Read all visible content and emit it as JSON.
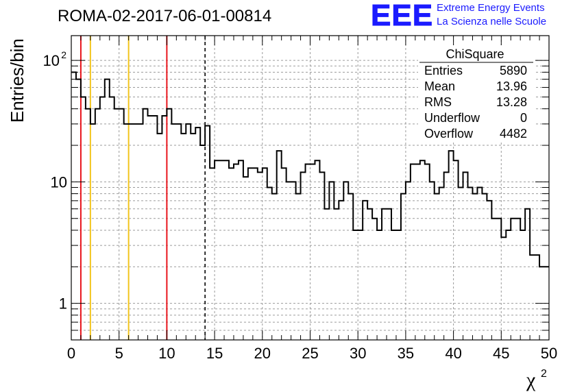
{
  "header": {
    "run_title": "ROMA-02-2017-06-01-00814",
    "logo_text": "EEE",
    "logo_line1": "Extreme Energy Events",
    "logo_line2": "La Scienza nelle Scuole"
  },
  "stats_box": {
    "title": "ChiSquare",
    "rows": [
      {
        "label": "Entries",
        "value": "5890"
      },
      {
        "label": "Mean",
        "value": "13.96"
      },
      {
        "label": "RMS",
        "value": "13.28"
      },
      {
        "label": "Underflow",
        "value": "0"
      },
      {
        "label": "Overflow",
        "value": "4482"
      }
    ]
  },
  "chart_data": {
    "type": "histogram",
    "ylabel": "Entries/bin",
    "xlabel": "χ²",
    "xlim": [
      0,
      50
    ],
    "ylim": [
      0.5,
      160
    ],
    "yscale": "log",
    "grid": true,
    "bin_width": 0.5,
    "x_ticks": [
      "0",
      "5",
      "10",
      "15",
      "20",
      "25",
      "30",
      "35",
      "40",
      "45",
      "50"
    ],
    "y_ticks": [
      {
        "value": 1,
        "label": "1"
      },
      {
        "value": 10,
        "label": "10"
      },
      {
        "value": 100,
        "label": "10",
        "exp": "2"
      }
    ],
    "values": [
      80,
      70,
      50,
      40,
      30,
      40,
      50,
      70,
      50,
      40,
      40,
      30,
      30,
      30,
      30,
      40,
      35,
      35,
      25,
      35,
      40,
      30,
      30,
      25,
      30,
      25,
      28,
      20,
      29,
      13,
      15,
      15,
      15,
      13,
      14,
      15,
      11,
      13,
      13,
      12,
      13,
      9,
      8,
      18,
      13,
      10,
      10,
      8,
      12,
      14,
      14,
      15,
      12,
      6,
      10,
      6,
      7,
      10,
      8,
      4,
      4,
      7,
      6,
      5,
      4,
      6,
      6,
      4,
      4,
      8,
      10,
      14,
      14,
      15,
      14,
      10,
      8,
      9,
      12,
      18,
      15,
      9,
      12,
      9,
      8,
      9,
      8,
      7,
      5,
      5,
      3.5,
      4,
      5,
      5,
      4,
      6,
      2.5,
      2.5,
      2,
      2
    ],
    "vertical_lines": [
      {
        "x": 1,
        "color": "#e8141b",
        "style": "solid"
      },
      {
        "x": 2,
        "color": "#f2c41c",
        "style": "solid"
      },
      {
        "x": 6,
        "color": "#f2c41c",
        "style": "solid"
      },
      {
        "x": 10,
        "color": "#e8141b",
        "style": "solid"
      },
      {
        "x": 14,
        "color": "#000000",
        "style": "dashed"
      }
    ]
  }
}
